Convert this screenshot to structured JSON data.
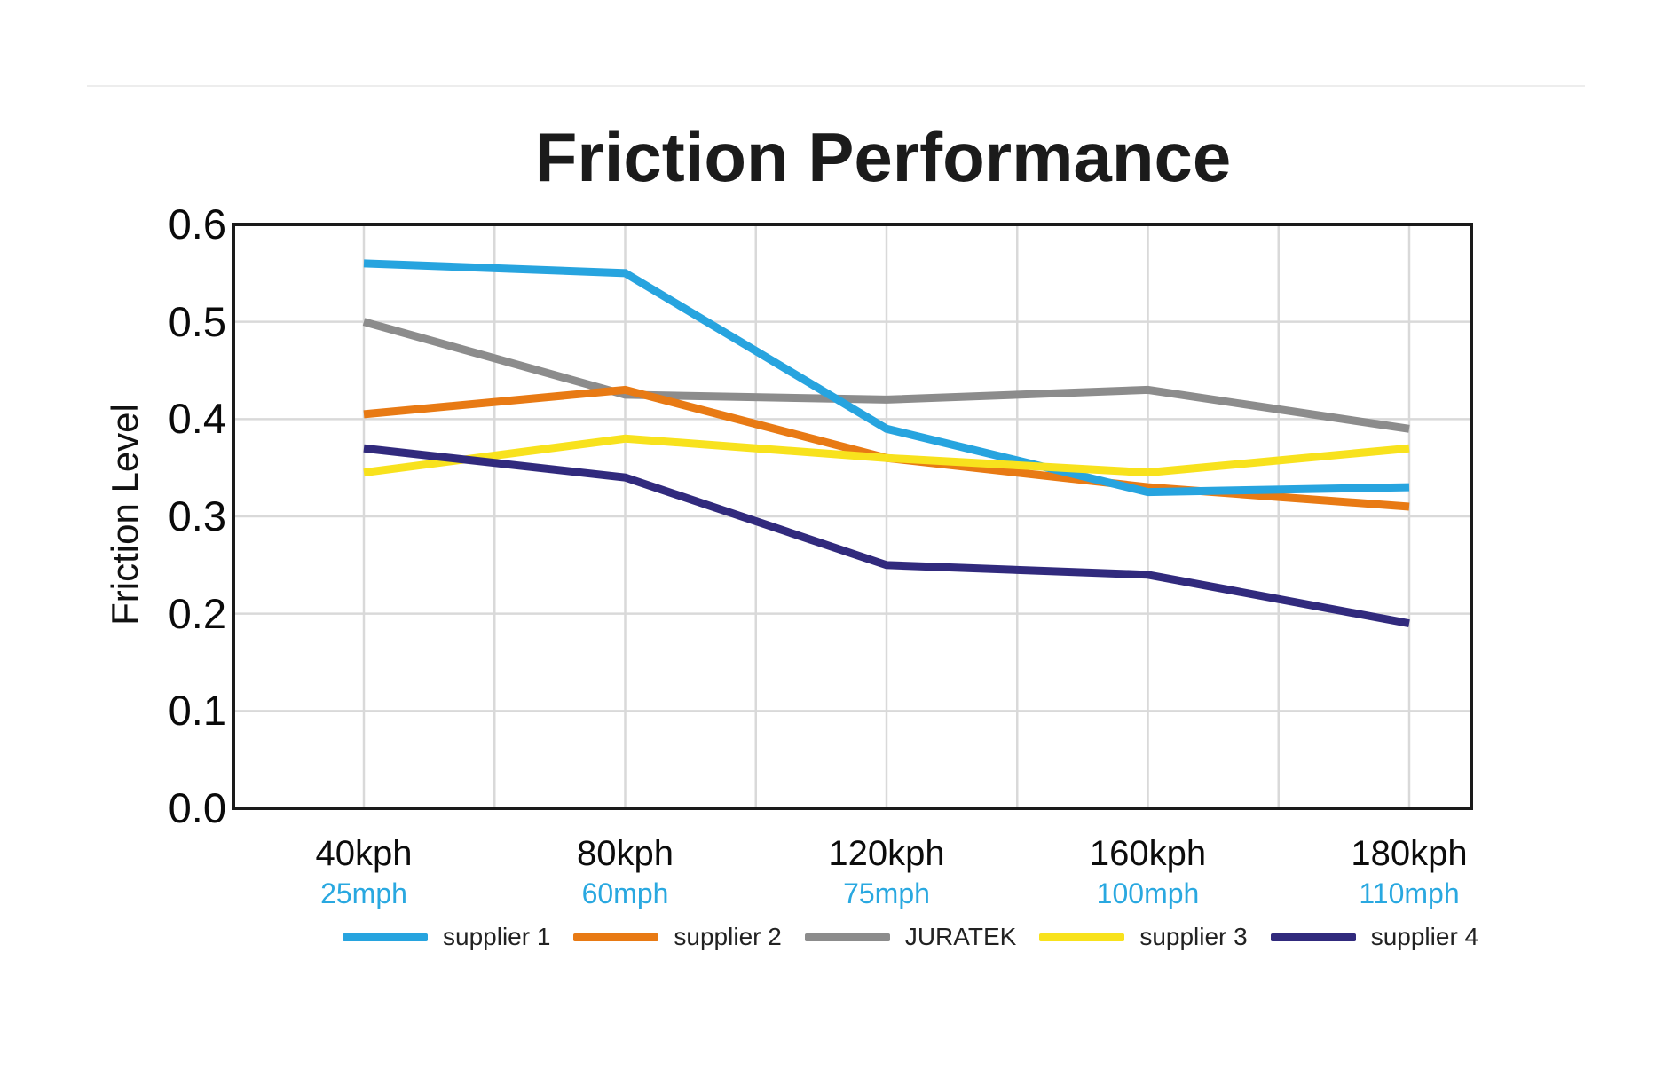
{
  "chart_data": {
    "type": "line",
    "title": "Friction Performance",
    "ylabel": "Friction Level",
    "xlabel": "",
    "ylim": [
      0.0,
      0.6
    ],
    "y_ticks": [
      "0.6",
      "0.5",
      "0.4",
      "0.3",
      "0.2",
      "0.1",
      "0.0"
    ],
    "y_tick_values": [
      0.6,
      0.5,
      0.4,
      0.3,
      0.2,
      0.1,
      0.0
    ],
    "grid": true,
    "x_minor_gridlines_every_half_step": true,
    "legend_position": "bottom",
    "categories": [
      "40kph",
      "80kph",
      "120kph",
      "160kph",
      "180kph"
    ],
    "categories_secondary": [
      "25mph",
      "60mph",
      "75mph",
      "100mph",
      "110mph"
    ],
    "series": [
      {
        "name": "supplier 1",
        "color": "#27A4DF",
        "values": [
          0.56,
          0.55,
          0.39,
          0.325,
          0.33
        ]
      },
      {
        "name": "supplier 2",
        "color": "#E87A14",
        "values": [
          0.405,
          0.43,
          0.36,
          0.33,
          0.31
        ]
      },
      {
        "name": "JURATEK",
        "color": "#8C8C8C",
        "values": [
          0.5,
          0.425,
          0.42,
          0.43,
          0.39
        ]
      },
      {
        "name": "supplier 3",
        "color": "#F8E21D",
        "values": [
          0.345,
          0.38,
          0.36,
          0.345,
          0.37
        ]
      },
      {
        "name": "supplier 4",
        "color": "#312A7D",
        "values": [
          0.37,
          0.34,
          0.25,
          0.24,
          0.19
        ]
      }
    ],
    "colors": {
      "axis_border": "#1a1a1a",
      "gridline": "#d9d9d9",
      "tick_label": "#0a0a0a",
      "secondary_label": "#29A8E0"
    }
  }
}
